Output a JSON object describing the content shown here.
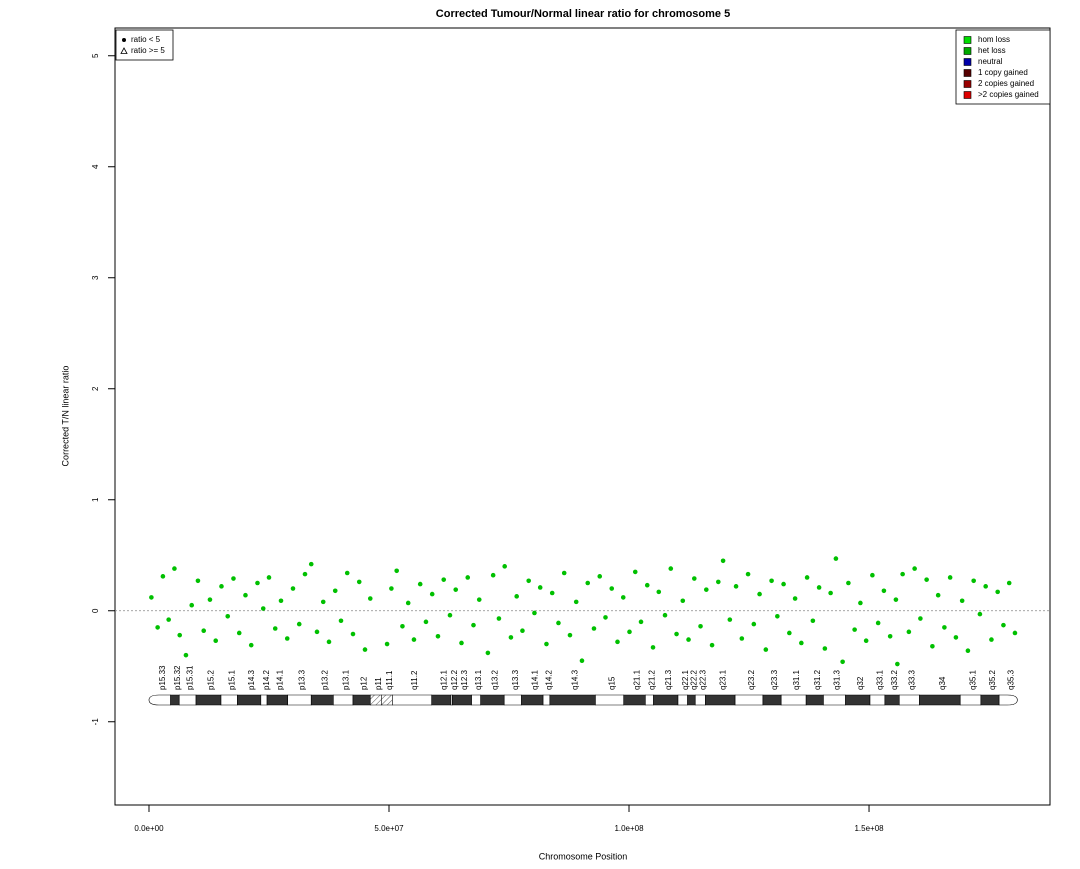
{
  "chart_data": {
    "type": "scatter",
    "title": "Corrected Tumour/Normal linear ratio for chromosome  5",
    "x_label": "Chromosome Position",
    "y_label": "Corrected T/N linear ratio",
    "xlim": [
      -7080000.0,
      187700000.0
    ],
    "ylim": [
      -1.75,
      5.25
    ],
    "xticks": [
      {
        "value": 0,
        "label": "0.0e+00"
      },
      {
        "value": 50000000.0,
        "label": "5.0e+07"
      },
      {
        "value": 100000000.0,
        "label": "1.0e+08"
      },
      {
        "value": 150000000.0,
        "label": "1.5e+08"
      }
    ],
    "yticks": [
      -1,
      0,
      1,
      2,
      3,
      4,
      5
    ],
    "hline": 0,
    "color": "#00c000",
    "shape_legend": [
      {
        "label": "ratio < 5",
        "shape": "circle"
      },
      {
        "label": "ratio >= 5",
        "shape": "triangle"
      }
    ],
    "state_legend": [
      {
        "label": "hom loss",
        "color": "#00dd00"
      },
      {
        "label": "het loss",
        "color": "#00aa00"
      },
      {
        "label": "neutral",
        "color": "#0000aa"
      },
      {
        "label": "1 copy gained",
        "color": "#550000"
      },
      {
        "label": "2 copies gained",
        "color": "#990000"
      },
      {
        "label": ">2 copies gained",
        "color": "#dd0000"
      }
    ],
    "points": {
      "x": [
        500000.0,
        1800000.0,
        2900000.0,
        4100000.0,
        5300000.0,
        6400000.0,
        7700000.0,
        8900000.0,
        10200000.0,
        11400000.0,
        12700000.0,
        13900000.0,
        15100000.0,
        16400000.0,
        17600000.0,
        18800000.0,
        20100000.0,
        21300000.0,
        22600000.0,
        23800000.0,
        25000000.0,
        26300000.0,
        27500000.0,
        28800000.0,
        30000000.0,
        31300000.0,
        32500000.0,
        33800000.0,
        35000000.0,
        36300000.0,
        37500000.0,
        38800000.0,
        40000000.0,
        41300000.0,
        42500000.0,
        43800000.0,
        45000000.0,
        46100000.0,
        49600000.0,
        50500000.0,
        51600000.0,
        52800000.0,
        54000000.0,
        55200000.0,
        56500000.0,
        57700000.0,
        59000000.0,
        60200000.0,
        61400000.0,
        62700000.0,
        63900000.0,
        65100000.0,
        66400000.0,
        67600000.0,
        68800000.0,
        70600000.0,
        71700000.0,
        72900000.0,
        74100000.0,
        75400000.0,
        76600000.0,
        77800000.0,
        79100000.0,
        80300000.0,
        81500000.0,
        82800000.0,
        84000000.0,
        85300000.0,
        86500000.0,
        87700000.0,
        89000000.0,
        90200000.0,
        91400000.0,
        92700000.0,
        93900000.0,
        95100000.0,
        96400000.0,
        97600000.0,
        98800000.0,
        100100000.0,
        101300000.0,
        102500000.0,
        103800000.0,
        105000000.0,
        106200000.0,
        107500000.0,
        108700000.0,
        109900000.0,
        111200000.0,
        112400000.0,
        113600000.0,
        114900000.0,
        116100000.0,
        117300000.0,
        118600000.0,
        119600000.0,
        121000000.0,
        122300000.0,
        123500000.0,
        124800000.0,
        126000000.0,
        127200000.0,
        128500000.0,
        129700000.0,
        130900000.0,
        132200000.0,
        133400000.0,
        134600000.0,
        135900000.0,
        137100000.0,
        138300000.0,
        139600000.0,
        140800000.0,
        142000000.0,
        143100000.0,
        144500000.0,
        145700000.0,
        147000000.0,
        148200000.0,
        149400000.0,
        150700000.0,
        151900000.0,
        153100000.0,
        154400000.0,
        155600000.0,
        155900000.0,
        157000000.0,
        158300000.0,
        159500000.0,
        160700000.0,
        162000000.0,
        163200000.0,
        164400000.0,
        165700000.0,
        166900000.0,
        168100000.0,
        169400000.0,
        170600000.0,
        171800000.0,
        173100000.0,
        174300000.0,
        175500000.0,
        176800000.0,
        178000000.0,
        179200000.0,
        180400000.0
      ],
      "y": [
        0.12,
        -0.15,
        0.31,
        -0.08,
        0.38,
        -0.22,
        -0.4,
        0.05,
        0.27,
        -0.18,
        0.1,
        -0.27,
        0.22,
        -0.05,
        0.29,
        -0.2,
        0.14,
        -0.31,
        0.25,
        0.02,
        0.3,
        -0.16,
        0.09,
        -0.25,
        0.2,
        -0.12,
        0.33,
        0.42,
        -0.19,
        0.08,
        -0.28,
        0.18,
        -0.09,
        0.34,
        -0.21,
        0.26,
        -0.35,
        0.11,
        -0.3,
        0.2,
        0.36,
        -0.14,
        0.07,
        -0.26,
        0.24,
        -0.1,
        0.15,
        -0.23,
        0.28,
        -0.04,
        0.19,
        -0.29,
        0.3,
        -0.13,
        0.1,
        -0.38,
        0.32,
        -0.07,
        0.4,
        -0.24,
        0.13,
        -0.18,
        0.27,
        -0.02,
        0.21,
        -0.3,
        0.16,
        -0.11,
        0.34,
        -0.22,
        0.08,
        -0.45,
        0.25,
        -0.16,
        0.31,
        -0.06,
        0.2,
        -0.28,
        0.12,
        -0.19,
        0.35,
        -0.1,
        0.23,
        -0.33,
        0.17,
        -0.04,
        0.38,
        -0.21,
        0.09,
        -0.26,
        0.29,
        -0.14,
        0.19,
        -0.31,
        0.26,
        0.45,
        -0.08,
        0.22,
        -0.25,
        0.33,
        -0.12,
        0.15,
        -0.35,
        0.27,
        -0.05,
        0.24,
        -0.2,
        0.11,
        -0.29,
        0.3,
        -0.09,
        0.21,
        -0.34,
        0.16,
        0.47,
        -0.46,
        0.25,
        -0.17,
        0.07,
        -0.27,
        0.32,
        -0.11,
        0.18,
        -0.23,
        0.1,
        -0.48,
        0.33,
        -0.19,
        0.38,
        -0.07,
        0.28,
        -0.32,
        0.14,
        -0.15,
        0.3,
        -0.24,
        0.09,
        -0.36,
        0.27,
        -0.03,
        0.22,
        -0.26,
        0.17,
        -0.13,
        0.25,
        -0.2
      ]
    },
    "bands": [
      {
        "name": "p15.33",
        "start": 0,
        "end": 4500000.0,
        "stain": "gneg"
      },
      {
        "name": "p15.32",
        "start": 4500000.0,
        "end": 6300000.0,
        "stain": "gpos"
      },
      {
        "name": "p15.31",
        "start": 6300000.0,
        "end": 9800000.0,
        "stain": "gneg"
      },
      {
        "name": "p15.2",
        "start": 9800000.0,
        "end": 15000000.0,
        "stain": "gpos"
      },
      {
        "name": "p15.1",
        "start": 15000000.0,
        "end": 18400000.0,
        "stain": "gneg"
      },
      {
        "name": "p14.3",
        "start": 18400000.0,
        "end": 23300000.0,
        "stain": "gpos"
      },
      {
        "name": "p14.2",
        "start": 23300000.0,
        "end": 24600000.0,
        "stain": "gneg"
      },
      {
        "name": "p14.1",
        "start": 24600000.0,
        "end": 28900000.0,
        "stain": "gpos"
      },
      {
        "name": "p13.3",
        "start": 28900000.0,
        "end": 33800000.0,
        "stain": "gneg"
      },
      {
        "name": "p13.2",
        "start": 33800000.0,
        "end": 38400000.0,
        "stain": "gpos"
      },
      {
        "name": "p13.1",
        "start": 38400000.0,
        "end": 42500000.0,
        "stain": "gneg"
      },
      {
        "name": "p12",
        "start": 42500000.0,
        "end": 46100000.0,
        "stain": "gpos"
      },
      {
        "name": "p11",
        "start": 46100000.0,
        "end": 48400000.0,
        "stain": "acen"
      },
      {
        "name": "q11.1",
        "start": 48400000.0,
        "end": 50700000.0,
        "stain": "acen"
      },
      {
        "name": "q11.2",
        "start": 50700000.0,
        "end": 58900000.0,
        "stain": "gneg"
      },
      {
        "name": "q12.1",
        "start": 58900000.0,
        "end": 62900000.0,
        "stain": "gpos"
      },
      {
        "name": "q12.2",
        "start": 62900000.0,
        "end": 63200000.0,
        "stain": "gneg"
      },
      {
        "name": "q12.3",
        "start": 63200000.0,
        "end": 67200000.0,
        "stain": "gpos"
      },
      {
        "name": "q13.1",
        "start": 67200000.0,
        "end": 69100000.0,
        "stain": "gneg"
      },
      {
        "name": "q13.2",
        "start": 69100000.0,
        "end": 74000000.0,
        "stain": "gpos"
      },
      {
        "name": "q13.3",
        "start": 74000000.0,
        "end": 77600000.0,
        "stain": "gneg"
      },
      {
        "name": "q14.1",
        "start": 77600000.0,
        "end": 82100000.0,
        "stain": "gpos"
      },
      {
        "name": "q14.2",
        "start": 82100000.0,
        "end": 83500000.0,
        "stain": "gneg"
      },
      {
        "name": "q14.3",
        "start": 83500000.0,
        "end": 93000000.0,
        "stain": "gpos"
      },
      {
        "name": "q15",
        "start": 93000000.0,
        "end": 98900000.0,
        "stain": "gneg"
      },
      {
        "name": "q21.1",
        "start": 98900000.0,
        "end": 103400000.0,
        "stain": "gpos"
      },
      {
        "name": "q21.2",
        "start": 103400000.0,
        "end": 105100000.0,
        "stain": "gneg"
      },
      {
        "name": "q21.3",
        "start": 105100000.0,
        "end": 110200000.0,
        "stain": "gpos"
      },
      {
        "name": "q22.1",
        "start": 110200000.0,
        "end": 112200000.0,
        "stain": "gneg"
      },
      {
        "name": "q22.2",
        "start": 112200000.0,
        "end": 113800000.0,
        "stain": "gpos"
      },
      {
        "name": "q22.3",
        "start": 113800000.0,
        "end": 115900000.0,
        "stain": "gneg"
      },
      {
        "name": "q23.1",
        "start": 115900000.0,
        "end": 122100000.0,
        "stain": "gpos"
      },
      {
        "name": "q23.2",
        "start": 122100000.0,
        "end": 127900000.0,
        "stain": "gneg"
      },
      {
        "name": "q23.3",
        "start": 127900000.0,
        "end": 131700000.0,
        "stain": "gpos"
      },
      {
        "name": "q31.1",
        "start": 131700000.0,
        "end": 136900000.0,
        "stain": "gneg"
      },
      {
        "name": "q31.2",
        "start": 136900000.0,
        "end": 140500000.0,
        "stain": "gpos"
      },
      {
        "name": "q31.3",
        "start": 140500000.0,
        "end": 145100000.0,
        "stain": "gneg"
      },
      {
        "name": "q32",
        "start": 145100000.0,
        "end": 150200000.0,
        "stain": "gpos"
      },
      {
        "name": "q33.1",
        "start": 150200000.0,
        "end": 153300000.0,
        "stain": "gneg"
      },
      {
        "name": "q33.2",
        "start": 153300000.0,
        "end": 156300000.0,
        "stain": "gpos"
      },
      {
        "name": "q33.3",
        "start": 156300000.0,
        "end": 160500000.0,
        "stain": "gneg"
      },
      {
        "name": "q34",
        "start": 160500000.0,
        "end": 169000000.0,
        "stain": "gpos"
      },
      {
        "name": "q35.1",
        "start": 169000000.0,
        "end": 173300000.0,
        "stain": "gneg"
      },
      {
        "name": "q35.2",
        "start": 173300000.0,
        "end": 177100000.0,
        "stain": "gpos"
      },
      {
        "name": "q35.3",
        "start": 177100000.0,
        "end": 180900000.0,
        "stain": "gneg"
      }
    ]
  }
}
